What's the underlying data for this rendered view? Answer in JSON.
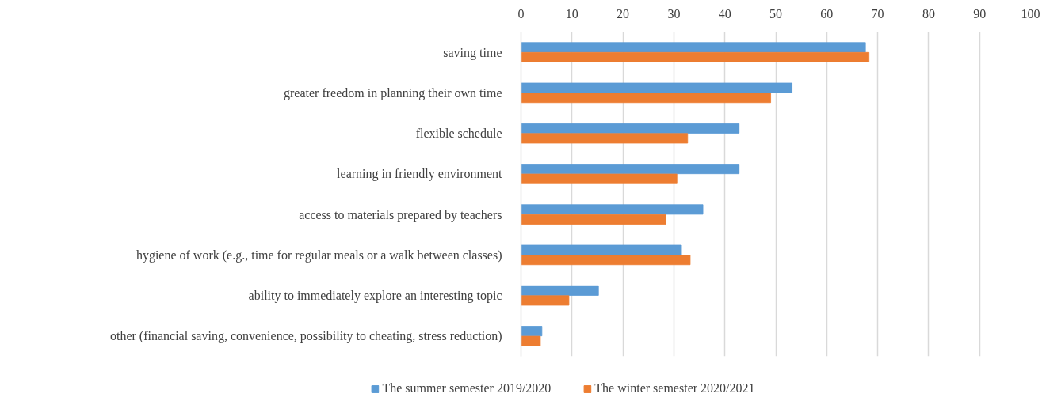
{
  "chart_data": {
    "type": "bar",
    "orientation": "horizontal",
    "categories": [
      "saving time",
      "greater freedom in planning their own time",
      "flexible schedule",
      "learning in friendly environment",
      "access to materials prepared by teachers",
      "hygiene of work (e.g., time for regular meals or a walk between classes)",
      "ability to immediately explore an interesting topic",
      "other (financial saving, convenience, possibility to cheating, stress reduction)"
    ],
    "series": [
      {
        "name": "The summer semester 2019/2020",
        "color": "#5b9bd5",
        "values": [
          67.6,
          53.2,
          42.8,
          42.8,
          35.7,
          31.5,
          15.2,
          4.1
        ]
      },
      {
        "name": "The winter semester 2020/2021",
        "color": "#ed7d31",
        "values": [
          68.3,
          49.0,
          32.7,
          30.6,
          28.4,
          33.2,
          9.4,
          3.8
        ]
      }
    ],
    "xlim": [
      0,
      100
    ],
    "xticks": [
      0,
      10,
      20,
      30,
      40,
      50,
      60,
      70,
      80,
      90,
      100
    ],
    "grid": "x",
    "legend": "bottom"
  }
}
